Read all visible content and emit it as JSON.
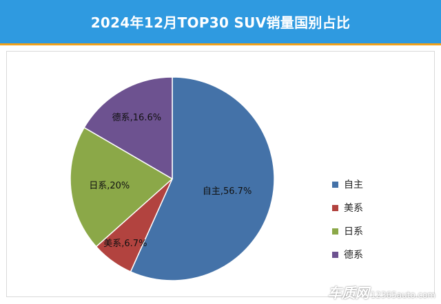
{
  "chart_data": {
    "type": "pie",
    "title": "2024年12月TOP30 SUV销量国别占比",
    "slices": [
      {
        "label": "自主",
        "value": 56.7,
        "data_label": "自主,56.7%",
        "color": "#4472a8"
      },
      {
        "label": "美系",
        "value": 6.7,
        "data_label": "美系,6.7%",
        "color": "#b2433f"
      },
      {
        "label": "日系",
        "value": 20,
        "data_label": "日系,20%",
        "color": "#8ba848"
      },
      {
        "label": "德系",
        "value": 16.6,
        "data_label": "德系,16.6%",
        "color": "#6d5290"
      }
    ],
    "legend_position": "right"
  },
  "watermark": {
    "brand": "车质网",
    "url": "12365auto.com"
  }
}
